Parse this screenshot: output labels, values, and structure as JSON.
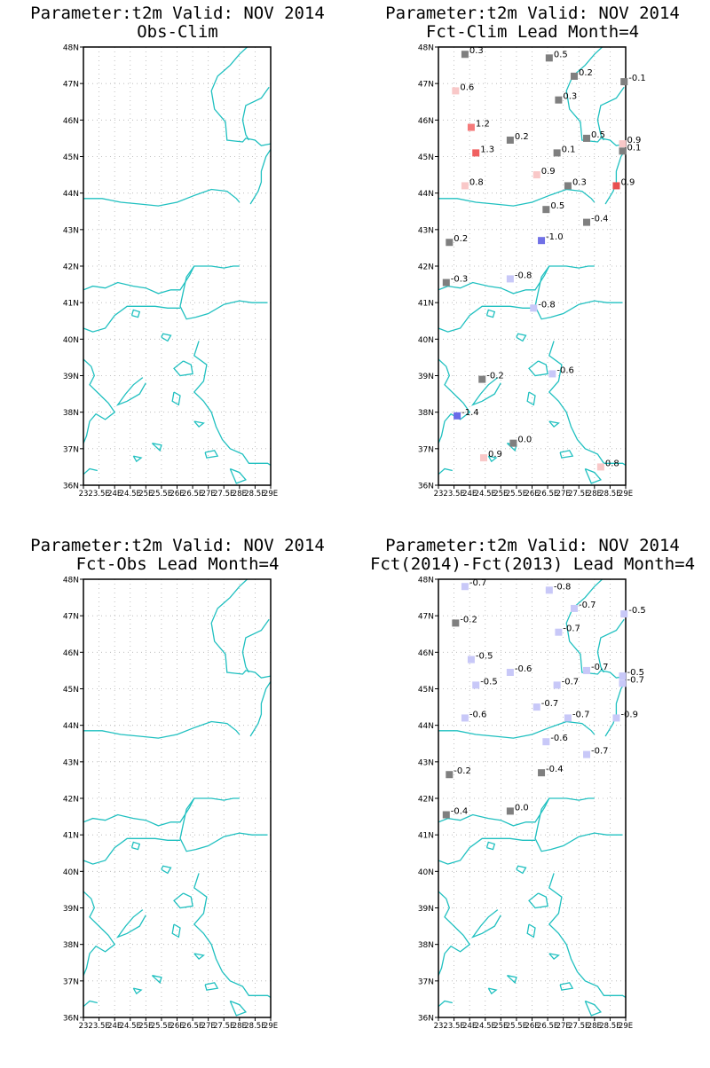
{
  "panels": [
    {
      "title1": "Parameter:t2m Valid: NOV 2014",
      "title2": "Obs-Clim",
      "stations": []
    },
    {
      "title1": "Parameter:t2m Valid: NOV 2014",
      "title2": "Fct-Clim Lead Month=4",
      "stations": [
        {
          "lon": 23.85,
          "lat": 47.8,
          "value": "0.3",
          "color": "#7f7f7f"
        },
        {
          "lon": 26.55,
          "lat": 47.7,
          "value": "0.5",
          "color": "#7f7f7f"
        },
        {
          "lon": 27.35,
          "lat": 47.2,
          "value": "0.2",
          "color": "#7f7f7f"
        },
        {
          "lon": 28.95,
          "lat": 47.05,
          "value": "-0.1",
          "color": "#7f7f7f"
        },
        {
          "lon": 23.55,
          "lat": 46.8,
          "value": "0.6",
          "color": "#f9c8c8"
        },
        {
          "lon": 26.85,
          "lat": 46.55,
          "value": "0.3",
          "color": "#7f7f7f"
        },
        {
          "lon": 24.05,
          "lat": 45.8,
          "value": "1.2",
          "color": "#f57a7a"
        },
        {
          "lon": 25.3,
          "lat": 45.45,
          "value": "0.2",
          "color": "#7f7f7f"
        },
        {
          "lon": 27.75,
          "lat": 45.5,
          "value": "0.5",
          "color": "#7f7f7f"
        },
        {
          "lon": 28.9,
          "lat": 45.35,
          "value": "0.9",
          "color": "#f9c8c8"
        },
        {
          "lon": 28.9,
          "lat": 45.15,
          "value": "0.1",
          "color": "#7f7f7f"
        },
        {
          "lon": 24.2,
          "lat": 45.1,
          "value": "1.3",
          "color": "#f06060"
        },
        {
          "lon": 26.8,
          "lat": 45.1,
          "value": "0.1",
          "color": "#7f7f7f"
        },
        {
          "lon": 26.15,
          "lat": 44.5,
          "value": "0.9",
          "color": "#f9c8c8"
        },
        {
          "lon": 23.85,
          "lat": 44.2,
          "value": "0.8",
          "color": "#f9c8c8"
        },
        {
          "lon": 27.15,
          "lat": 44.2,
          "value": "0.3",
          "color": "#7f7f7f"
        },
        {
          "lon": 28.7,
          "lat": 44.2,
          "value": "0.9",
          "color": "#e85050"
        },
        {
          "lon": 26.45,
          "lat": 43.55,
          "value": "0.5",
          "color": "#7f7f7f"
        },
        {
          "lon": 27.75,
          "lat": 43.2,
          "value": "-0.4",
          "color": "#7f7f7f"
        },
        {
          "lon": 23.35,
          "lat": 42.65,
          "value": "0.2",
          "color": "#7f7f7f"
        },
        {
          "lon": 26.3,
          "lat": 42.7,
          "value": "-1.0",
          "color": "#7070e6"
        },
        {
          "lon": 25.3,
          "lat": 41.65,
          "value": "-0.8",
          "color": "#c8c8f8"
        },
        {
          "lon": 23.25,
          "lat": 41.55,
          "value": "-0.3",
          "color": "#7f7f7f"
        },
        {
          "lon": 26.05,
          "lat": 40.85,
          "value": "-0.8",
          "color": "#c8c8f8"
        },
        {
          "lon": 24.4,
          "lat": 38.9,
          "value": "-0.2",
          "color": "#7f7f7f"
        },
        {
          "lon": 26.65,
          "lat": 39.05,
          "value": "-0.6",
          "color": "#c8c8f8"
        },
        {
          "lon": 23.6,
          "lat": 37.9,
          "value": "-1.4",
          "color": "#6a6ae8"
        },
        {
          "lon": 25.4,
          "lat": 37.15,
          "value": "0.0",
          "color": "#7f7f7f"
        },
        {
          "lon": 24.45,
          "lat": 36.75,
          "value": "0.9",
          "color": "#f9c8c8"
        },
        {
          "lon": 28.2,
          "lat": 36.5,
          "value": "0.8",
          "color": "#f9c8c8"
        }
      ]
    },
    {
      "title1": "Parameter:t2m Valid: NOV 2014",
      "title2": "Fct-Obs Lead Month=4",
      "stations": []
    },
    {
      "title1": "Parameter:t2m Valid: NOV 2014",
      "title2": "Fct(2014)-Fct(2013) Lead Month=4",
      "stations": [
        {
          "lon": 23.85,
          "lat": 47.8,
          "value": "-0.7",
          "color": "#c8c8f8"
        },
        {
          "lon": 26.55,
          "lat": 47.7,
          "value": "-0.8",
          "color": "#c8c8f8"
        },
        {
          "lon": 27.35,
          "lat": 47.2,
          "value": "-0.7",
          "color": "#c8c8f8"
        },
        {
          "lon": 28.95,
          "lat": 47.05,
          "value": "-0.5",
          "color": "#c8c8f8"
        },
        {
          "lon": 23.55,
          "lat": 46.8,
          "value": "-0.2",
          "color": "#7f7f7f"
        },
        {
          "lon": 26.85,
          "lat": 46.55,
          "value": "-0.7",
          "color": "#c8c8f8"
        },
        {
          "lon": 24.05,
          "lat": 45.8,
          "value": "-0.5",
          "color": "#c8c8f8"
        },
        {
          "lon": 25.3,
          "lat": 45.45,
          "value": "-0.6",
          "color": "#c8c8f8"
        },
        {
          "lon": 27.75,
          "lat": 45.5,
          "value": "-0.7",
          "color": "#c8c8f8"
        },
        {
          "lon": 28.9,
          "lat": 45.35,
          "value": "-0.5",
          "color": "#c8c8f8"
        },
        {
          "lon": 28.9,
          "lat": 45.15,
          "value": "-0.7",
          "color": "#c8c8f8"
        },
        {
          "lon": 24.2,
          "lat": 45.1,
          "value": "-0.5",
          "color": "#c8c8f8"
        },
        {
          "lon": 26.8,
          "lat": 45.1,
          "value": "-0.7",
          "color": "#c8c8f8"
        },
        {
          "lon": 26.15,
          "lat": 44.5,
          "value": "-0.7",
          "color": "#c8c8f8"
        },
        {
          "lon": 23.85,
          "lat": 44.2,
          "value": "-0.6",
          "color": "#c8c8f8"
        },
        {
          "lon": 27.15,
          "lat": 44.2,
          "value": "-0.7",
          "color": "#c8c8f8"
        },
        {
          "lon": 28.7,
          "lat": 44.2,
          "value": "-0.9",
          "color": "#c8c8f8"
        },
        {
          "lon": 26.45,
          "lat": 43.55,
          "value": "-0.6",
          "color": "#c8c8f8"
        },
        {
          "lon": 27.75,
          "lat": 43.2,
          "value": "-0.7",
          "color": "#c8c8f8"
        },
        {
          "lon": 23.35,
          "lat": 42.65,
          "value": "-0.2",
          "color": "#7f7f7f"
        },
        {
          "lon": 26.3,
          "lat": 42.7,
          "value": "-0.4",
          "color": "#7f7f7f"
        },
        {
          "lon": 25.3,
          "lat": 41.65,
          "value": "0.0",
          "color": "#7f7f7f"
        },
        {
          "lon": 23.25,
          "lat": 41.55,
          "value": "-0.4",
          "color": "#7f7f7f"
        }
      ]
    }
  ],
  "axes": {
    "lat_labels": [
      "36N",
      "37N",
      "38N",
      "39N",
      "40N",
      "41N",
      "42N",
      "43N",
      "44N",
      "45N",
      "46N",
      "47N",
      "48N"
    ],
    "lon_labels": [
      "23",
      "23.5E",
      "24E",
      "24.5E",
      "25E",
      "25.5E",
      "26E",
      "26.5E",
      "27E",
      "27.5E",
      "28E",
      "28.5E",
      "29E"
    ],
    "lat_values": [
      36,
      37,
      38,
      39,
      40,
      41,
      42,
      43,
      44,
      45,
      46,
      47,
      48
    ],
    "lon_values": [
      23,
      23.5,
      24,
      24.5,
      25,
      25.5,
      26,
      26.5,
      27,
      27.5,
      28,
      28.5,
      29
    ]
  },
  "colors": {
    "coastline": "#20c0c0",
    "frame": "#000000",
    "grid": "#b0b0b0"
  }
}
